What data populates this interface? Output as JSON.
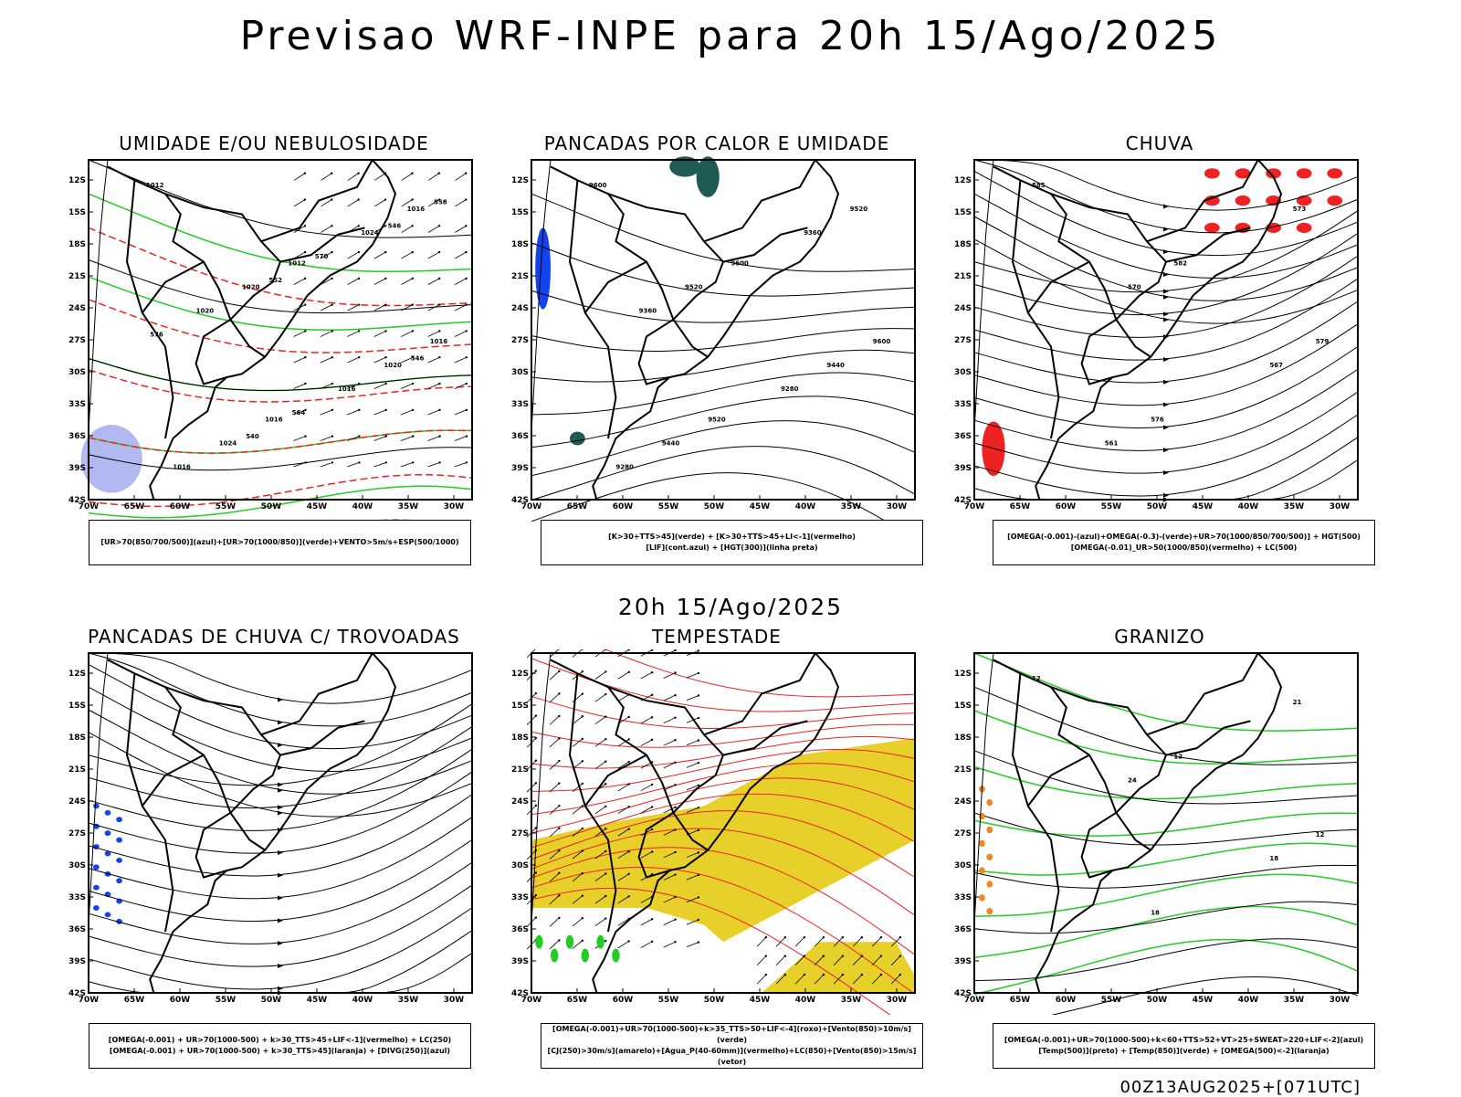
{
  "title": "Previsao WRF-INPE  para 20h 15/Ago/2025",
  "subtitle": "20h 15/Ago/2025",
  "footer": "00Z13AUG2025+[071UTC]",
  "lat_ticks": [
    "12S",
    "15S",
    "18S",
    "21S",
    "24S",
    "27S",
    "30S",
    "33S",
    "36S",
    "39S",
    "42S"
  ],
  "lon_ticks": [
    "70W",
    "65W",
    "60W",
    "55W",
    "50W",
    "45W",
    "40W",
    "35W",
    "30W"
  ],
  "colors": {
    "humid_blue": "#aab0ee",
    "green": "#22cc22",
    "red": "#ee2222",
    "yellow": "#e8d02a",
    "blue": "#1144ee",
    "orange": "#ee8822",
    "dark_teal": "#1f5a55"
  },
  "panels": [
    {
      "id": "umidade",
      "title": "UMIDADE E/OU NEBULOSIDADE",
      "legend": [
        "[UR>70(850/700/500)](azul)+[UR>70(1000/850)](verde)+VENTO>5m/s+ESP(500/1000)"
      ],
      "labels": [
        "1012",
        "1012",
        "1016",
        "1016",
        "1016",
        "1020",
        "1020",
        "1024",
        "1024",
        "1020",
        "1016",
        "1016",
        "570",
        "576",
        "564",
        "558",
        "552",
        "546",
        "540",
        "546"
      ]
    },
    {
      "id": "pancadas-calor",
      "title": "PANCADAS POR CALOR E UMIDADE",
      "legend": [
        "[K>30+TTS>45](verde) + [K>30+TTS>45+LI<-1](vermelho)",
        "[LIF](cont.azul) + [HGT(300)](linha preta)"
      ],
      "labels": [
        "9600",
        "9600",
        "9600",
        "9520",
        "9520",
        "9520",
        "9440",
        "9440",
        "9360",
        "9360",
        "9280",
        "9280"
      ]
    },
    {
      "id": "chuva",
      "title": "CHUVA",
      "legend": [
        "[OMEGA(-0.001)-(azul)+OMEGA(-0.3)-(verde)+UR>70(1000/850/700/500)] + HGT(500)",
        "[OMEGA(-0.01)_UR>50(1000/850)(vermelho) + LC(500)"
      ],
      "labels": [
        "585",
        "582",
        "579",
        "576",
        "573",
        "570",
        "567",
        "561"
      ]
    },
    {
      "id": "pancadas-trovoadas",
      "title": "PANCADAS DE CHUVA C/ TROVOADAS",
      "legend": [
        "[OMEGA(-0.001) + UR>70(1000-500) + k>30_TTS>45+LIF<-1](vermelho) + LC(250)",
        "[OMEGA(-0.001) + UR>70(1000-500) + k>30_TTS>45](laranja) + [DIVG(250)](azul)"
      ],
      "labels": []
    },
    {
      "id": "tempestade",
      "title": "TEMPESTADE",
      "legend": [
        "[OMEGA(-0.001)+UR>70(1000-500)+k>35_TTS>50+LIF<-4](roxo)+[Vento(850)>10m/s](verde)",
        "[CJ(250)>30m/s](amarelo)+[Agua_P(40-60mm)](vermelho)+LC(850)+[Vento(850)>15m/s](vetor)"
      ],
      "labels": []
    },
    {
      "id": "granizo",
      "title": "GRANIZO",
      "legend": [
        "[OMEGA(-0.001)+UR>70(1000-500)+k<60+TTS>52+VT>25+SWEAT>220+LIF<-2](azul)",
        "[Temp(500)](preto) + [Temp(850)](verde) + [OMEGA(500)<-2](laranja)"
      ],
      "labels": [
        "12",
        "12",
        "12",
        "18",
        "21",
        "24",
        "18"
      ]
    }
  ]
}
